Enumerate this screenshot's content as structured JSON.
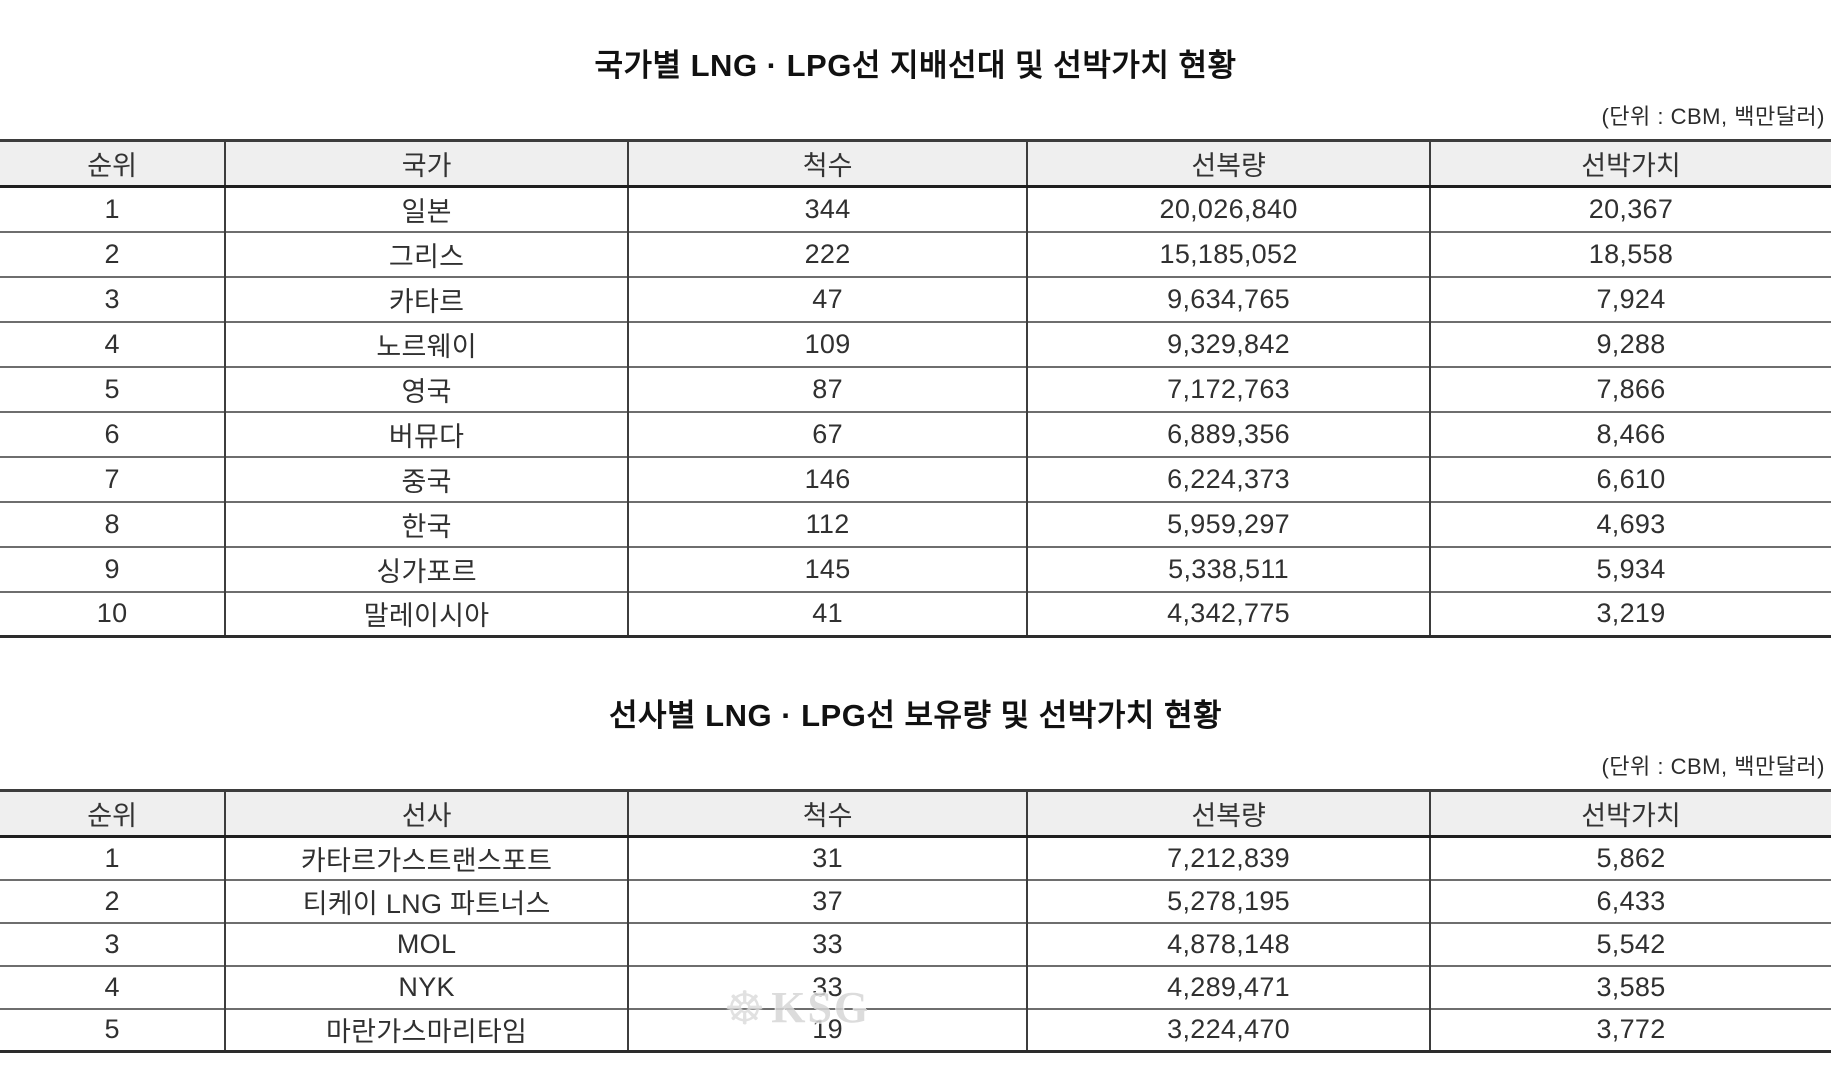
{
  "tables": [
    {
      "title": "국가별 LNG · LPG선 지배선대 및 선박가치 현황",
      "unit_label": "(단위 : CBM, 백만달러)",
      "columns": [
        "순위",
        "국가",
        "척수",
        "선복량",
        "선박가치"
      ],
      "rows": [
        [
          "1",
          "일본",
          "344",
          "20,026,840",
          "20,367"
        ],
        [
          "2",
          "그리스",
          "222",
          "15,185,052",
          "18,558"
        ],
        [
          "3",
          "카타르",
          "47",
          "9,634,765",
          "7,924"
        ],
        [
          "4",
          "노르웨이",
          "109",
          "9,329,842",
          "9,288"
        ],
        [
          "5",
          "영국",
          "87",
          "7,172,763",
          "7,866"
        ],
        [
          "6",
          "버뮤다",
          "67",
          "6,889,356",
          "8,466"
        ],
        [
          "7",
          "중국",
          "146",
          "6,224,373",
          "6,610"
        ],
        [
          "8",
          "한국",
          "112",
          "5,959,297",
          "4,693"
        ],
        [
          "9",
          "싱가포르",
          "145",
          "5,338,511",
          "5,934"
        ],
        [
          "10",
          "말레이시아",
          "41",
          "4,342,775",
          "3,219"
        ]
      ]
    },
    {
      "title": "선사별 LNG · LPG선 보유량 및 선박가치 현황",
      "unit_label": "(단위 : CBM, 백만달러)",
      "columns": [
        "순위",
        "선사",
        "척수",
        "선복량",
        "선박가치"
      ],
      "rows": [
        [
          "1",
          "카타르가스트랜스포트",
          "31",
          "7,212,839",
          "5,862"
        ],
        [
          "2",
          "티케이 LNG 파트너스",
          "37",
          "5,278,195",
          "6,433"
        ],
        [
          "3",
          "MOL",
          "33",
          "4,878,148",
          "5,542"
        ],
        [
          "4",
          "NYK",
          "33",
          "4,289,471",
          "3,585"
        ],
        [
          "5",
          "마란가스마리타임",
          "19",
          "3,224,470",
          "3,772"
        ]
      ]
    }
  ],
  "watermark": {
    "icon": "ship-wheel-icon",
    "glyph": "☸",
    "text": "KSG"
  },
  "colors": {
    "header_background": "#efefef",
    "heavy_border": "#2c2c2c",
    "row_divider": "#6e6e6e",
    "watermark_gray": "#d6d6d6"
  }
}
